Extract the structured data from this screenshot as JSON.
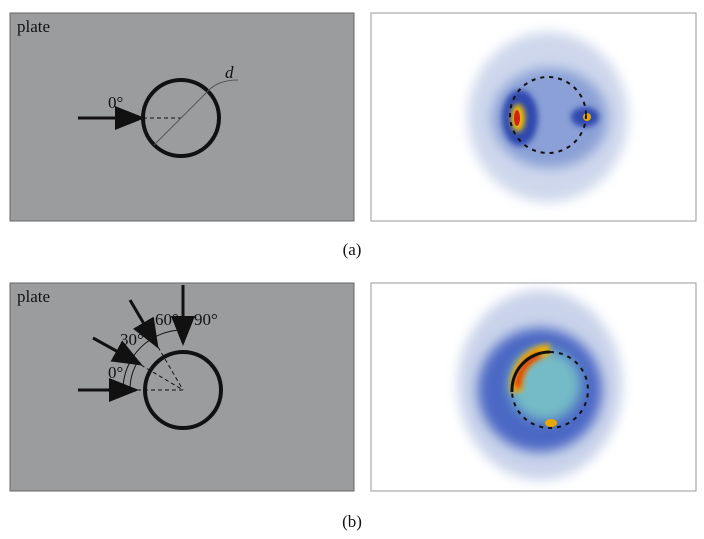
{
  "panels": [
    {
      "plate_label": "plate",
      "angles": [
        "0°"
      ],
      "diameter_label": "d",
      "caption": "(a)"
    },
    {
      "plate_label": "plate",
      "angles": [
        "0°",
        "30°",
        "60°",
        "90°"
      ],
      "caption": "(b)"
    }
  ]
}
